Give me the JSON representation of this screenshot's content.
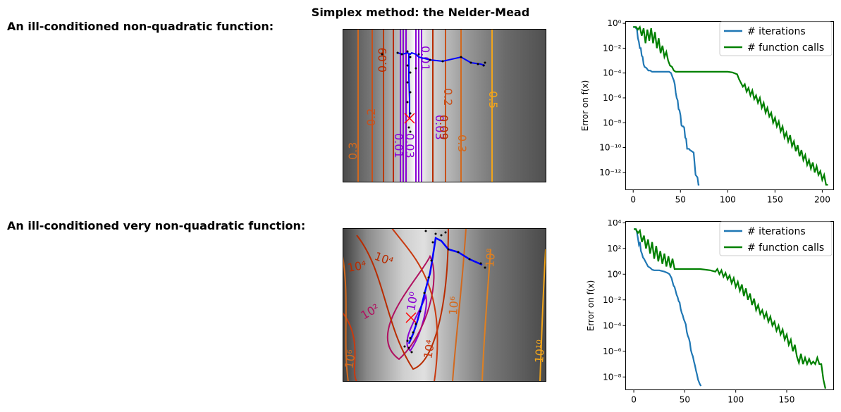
{
  "figure": {
    "title": "Simplex method: the Nelder-Mead",
    "rows": [
      {
        "label": "An ill-conditioned non-quadratic function:"
      },
      {
        "label": "An ill-conditioned very non-quadratic function:"
      }
    ]
  },
  "contour_plots": [
    {
      "contour_labels": [
        "0.01",
        "0.03",
        "0.09",
        "0.2",
        "0.3",
        "0.5",
        "0.01",
        "0.03",
        "0.09",
        "0.2",
        "0.3"
      ],
      "colors": {
        "low": "#8a00d4",
        "mid": "#c8501a",
        "high": "#f2a51a",
        "path": "#0000ff",
        "points": "#000000",
        "optimum": "#ff0000"
      }
    },
    {
      "contour_labels": [
        "10⁴",
        "10⁴",
        "10²",
        "10⁰",
        "10⁴",
        "10⁶",
        "10⁶",
        "10⁸",
        "10¹⁰"
      ],
      "colors": {
        "low": "#8a00d4",
        "mid": "#b01060",
        "high": "#f2a51a",
        "path": "#0000ff",
        "points": "#000000",
        "optimum": "#ff0000"
      }
    }
  ],
  "chart_data": [
    {
      "type": "line",
      "ylabel": "Error on f(x)",
      "xlabel": "",
      "yscale": "log",
      "xlim": [
        -8,
        212
      ],
      "ylim_exp": [
        -13.4,
        0.15
      ],
      "xticks": [
        0,
        50,
        100,
        150,
        200
      ],
      "yticks": [
        "10⁰",
        "10⁻²",
        "10⁻⁴",
        "10⁻⁶",
        "10⁻⁸",
        "10⁻¹⁰",
        "10⁻¹²"
      ],
      "legend_position": "top-right",
      "series": [
        {
          "name": "# iterations",
          "color": "#1f77b4",
          "x": [
            0,
            2,
            4,
            5,
            6,
            7,
            8,
            9,
            10,
            11,
            12,
            14,
            16,
            18,
            20,
            25,
            30,
            35,
            38,
            40,
            41,
            42,
            43,
            44,
            45,
            46,
            47,
            48,
            49,
            50,
            51,
            52,
            53,
            54,
            55,
            56,
            57,
            58,
            59,
            60,
            62,
            64,
            66,
            68,
            69,
            70
          ],
          "log10y": [
            -0.3,
            -0.3,
            -0.5,
            -1.2,
            -1.5,
            -2,
            -2,
            -2.6,
            -2.7,
            -3.3,
            -3.5,
            -3.6,
            -3.8,
            -3.8,
            -3.9,
            -3.9,
            -3.9,
            -3.9,
            -3.9,
            -4.0,
            -4.2,
            -4.4,
            -4.6,
            -4.9,
            -5.6,
            -6.0,
            -6.2,
            -6.9,
            -7.0,
            -7.4,
            -8.2,
            -8.3,
            -8.3,
            -8.4,
            -9.2,
            -9.3,
            -10.1,
            -10.1,
            -10.1,
            -10.2,
            -10.3,
            -10.4,
            -12.2,
            -12.4,
            -13.0,
            -13.0
          ]
        },
        {
          "name": "# function calls",
          "color": "#008000",
          "x": [
            0,
            3,
            5,
            7,
            9,
            11,
            13,
            15,
            17,
            19,
            21,
            23,
            25,
            27,
            29,
            31,
            33,
            35,
            37,
            39,
            41,
            43,
            45,
            50,
            55,
            60,
            65,
            70,
            75,
            80,
            85,
            90,
            95,
            100,
            105,
            110,
            112,
            114,
            116,
            118,
            120,
            122,
            124,
            126,
            128,
            130,
            132,
            134,
            136,
            138,
            140,
            142,
            144,
            146,
            148,
            150,
            152,
            154,
            156,
            158,
            160,
            162,
            164,
            166,
            168,
            170,
            172,
            174,
            176,
            178,
            180,
            182,
            184,
            186,
            188,
            190,
            192,
            194,
            196,
            198,
            200,
            202,
            204,
            206
          ],
          "log10y": [
            -0.3,
            -0.3,
            -0.5,
            -0.3,
            -1.0,
            -0.4,
            -1.6,
            -0.5,
            -1.4,
            -0.4,
            -1.6,
            -0.7,
            -2.0,
            -1.2,
            -2.4,
            -1.8,
            -2.7,
            -2.3,
            -3.0,
            -3.4,
            -3.5,
            -3.8,
            -3.9,
            -3.9,
            -3.9,
            -3.9,
            -3.9,
            -3.9,
            -3.9,
            -3.9,
            -3.9,
            -3.9,
            -3.9,
            -3.9,
            -3.95,
            -4.1,
            -4.5,
            -4.8,
            -5.1,
            -4.9,
            -5.5,
            -5.2,
            -5.8,
            -5.4,
            -6.1,
            -5.8,
            -6.4,
            -6.0,
            -6.8,
            -6.4,
            -7.2,
            -6.8,
            -7.5,
            -7.2,
            -8.0,
            -7.6,
            -8.3,
            -7.9,
            -8.7,
            -8.3,
            -9.2,
            -8.8,
            -9.5,
            -9.0,
            -9.9,
            -9.5,
            -10.3,
            -9.8,
            -10.7,
            -10.2,
            -11.0,
            -10.6,
            -11.4,
            -11.0,
            -11.7,
            -11.2,
            -12.0,
            -11.5,
            -12.2,
            -11.9,
            -12.6,
            -12.2,
            -13.0,
            -13.0
          ]
        }
      ]
    },
    {
      "type": "line",
      "ylabel": "Error on f(x)",
      "xlabel": "",
      "yscale": "log",
      "xlim": [
        -8,
        196
      ],
      "ylim_exp": [
        -9.0,
        4.1
      ],
      "xticks": [
        0,
        50,
        100,
        150
      ],
      "yticks": [
        "10⁴",
        "10²",
        "10⁰",
        "10⁻²",
        "10⁻⁴",
        "10⁻⁶",
        "10⁻⁸"
      ],
      "legend_position": "top-right",
      "series": [
        {
          "name": "# iterations",
          "color": "#1f77b4",
          "x": [
            0,
            2,
            3,
            4,
            5,
            6,
            7,
            8,
            9,
            10,
            12,
            14,
            16,
            18,
            20,
            25,
            30,
            33,
            35,
            37,
            38,
            39,
            40,
            41,
            42,
            43,
            44,
            45,
            46,
            47,
            48,
            49,
            50,
            51,
            52,
            53,
            54,
            55,
            56,
            57,
            58,
            59,
            60,
            61,
            62,
            63,
            64,
            65,
            66
          ],
          "log10y": [
            3.5,
            3.5,
            3.3,
            2.8,
            2.3,
            2.5,
            1.8,
            1.6,
            1.3,
            1.2,
            0.9,
            0.6,
            0.5,
            0.35,
            0.3,
            0.3,
            0.2,
            0.1,
            0,
            -0.3,
            -0.6,
            -0.9,
            -1.0,
            -1.3,
            -1.6,
            -1.8,
            -2.1,
            -2.2,
            -2.7,
            -3.0,
            -3.2,
            -3.5,
            -3.7,
            -3.9,
            -4.5,
            -4.8,
            -5.0,
            -5.3,
            -5.9,
            -6.2,
            -6.4,
            -6.8,
            -7.1,
            -7.5,
            -7.8,
            -8.2,
            -8.4,
            -8.6,
            -8.7
          ]
        },
        {
          "name": "# function calls",
          "color": "#008000",
          "x": [
            0,
            2,
            4,
            6,
            8,
            10,
            12,
            14,
            16,
            18,
            20,
            22,
            24,
            26,
            28,
            30,
            32,
            34,
            36,
            38,
            40,
            45,
            50,
            55,
            60,
            65,
            70,
            75,
            80,
            82,
            84,
            86,
            88,
            90,
            92,
            94,
            96,
            98,
            100,
            102,
            104,
            106,
            108,
            110,
            112,
            114,
            116,
            118,
            120,
            122,
            124,
            126,
            128,
            130,
            132,
            134,
            136,
            138,
            140,
            142,
            144,
            146,
            148,
            150,
            152,
            154,
            156,
            158,
            160,
            162,
            164,
            166,
            168,
            170,
            172,
            174,
            176,
            178,
            180,
            182,
            184,
            186,
            188
          ],
          "log10y": [
            3.5,
            3.5,
            3.2,
            3.4,
            2.5,
            3.0,
            2.0,
            2.7,
            1.6,
            2.5,
            1.2,
            2.2,
            1.0,
            1.8,
            0.8,
            1.6,
            0.6,
            1.4,
            0.5,
            1.2,
            0.4,
            0.4,
            0.4,
            0.4,
            0.4,
            0.4,
            0.35,
            0.3,
            0.2,
            0.4,
            0.0,
            0.3,
            -0.2,
            0.1,
            -0.4,
            -0.1,
            -0.7,
            -0.3,
            -1.0,
            -0.6,
            -1.3,
            -0.8,
            -1.7,
            -1.1,
            -2.0,
            -1.5,
            -2.4,
            -1.9,
            -2.8,
            -2.4,
            -3.1,
            -2.8,
            -3.4,
            -3.0,
            -3.7,
            -3.3,
            -4.0,
            -3.7,
            -4.4,
            -4.0,
            -4.7,
            -4.3,
            -5.1,
            -4.7,
            -5.5,
            -5.1,
            -6.0,
            -5.5,
            -6.4,
            -6.9,
            -6.2,
            -7.0,
            -6.5,
            -7.0,
            -6.6,
            -7.0,
            -6.8,
            -7.0,
            -6.5,
            -7.0,
            -7.0,
            -8.2,
            -8.9
          ]
        }
      ]
    }
  ]
}
